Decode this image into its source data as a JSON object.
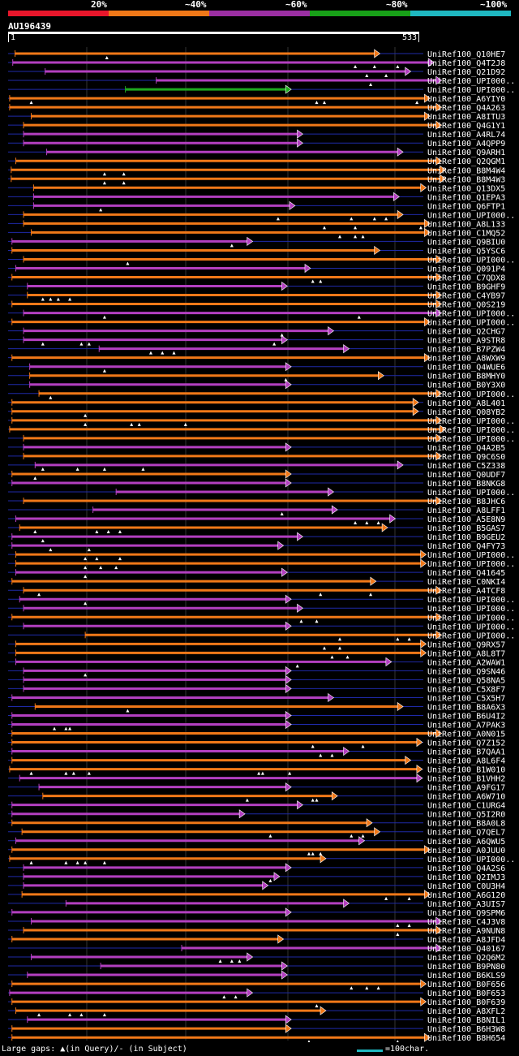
{
  "legend": [
    {
      "label": "20%",
      "color": "#e8162b"
    },
    {
      "label": "~40%",
      "color": "#f07818"
    },
    {
      "label": "~60%",
      "color": "#9b2fa3"
    },
    {
      "label": "~80%",
      "color": "#18a118"
    },
    {
      "label": "~100%",
      "color": "#1fb8c1"
    }
  ],
  "query": {
    "name": "AU196439",
    "start": "1",
    "end": "533",
    "length": 533
  },
  "colors": {
    "orange": "#f07818",
    "purple": "#b33fc0",
    "green": "#1faa1f",
    "blue": "#1f2aa8"
  },
  "hits": [
    {
      "name": "UniRef100_Q10HE7",
      "s": 9,
      "e": 480,
      "c": "orange",
      "g": [
        128
      ]
    },
    {
      "name": "UniRef100_Q4T2J8",
      "s": 6,
      "e": 550,
      "c": "purple",
      "g": [
        450,
        475,
        505
      ]
    },
    {
      "name": "UniRef100_Q21D92",
      "s": 48,
      "e": 520,
      "c": "purple",
      "g": [
        465,
        490
      ]
    },
    {
      "name": "UniRef100_UPI000..",
      "s": 192,
      "e": 560,
      "c": "purple",
      "g": [
        470
      ]
    },
    {
      "name": "UniRef100_UPI000..",
      "s": 152,
      "e": 365,
      "c": "green",
      "g": []
    },
    {
      "name": "UniRef100_A6YIY0",
      "s": 2,
      "e": 545,
      "c": "orange",
      "g": [
        30,
        400,
        410,
        530
      ]
    },
    {
      "name": "UniRef100_Q4A263",
      "s": 2,
      "e": 560,
      "c": "orange",
      "g": []
    },
    {
      "name": "UniRef100_A8ITU3",
      "s": 30,
      "e": 545,
      "c": "orange",
      "g": []
    },
    {
      "name": "UniRef100_Q4G1Y1",
      "s": 20,
      "e": 560,
      "c": "orange",
      "g": []
    },
    {
      "name": "UniRef100_A4RL74",
      "s": 20,
      "e": 380,
      "c": "purple",
      "g": []
    },
    {
      "name": "UniRef100_A4QPP9",
      "s": 20,
      "e": 380,
      "c": "purple",
      "g": []
    },
    {
      "name": "UniRef100_Q9ARH1",
      "s": 50,
      "e": 510,
      "c": "purple",
      "g": []
    },
    {
      "name": "UniRef100_Q2QGM1",
      "s": 10,
      "e": 560,
      "c": "orange",
      "g": []
    },
    {
      "name": "UniRef100_B8M4W4",
      "s": 4,
      "e": 565,
      "c": "orange",
      "g": [
        125,
        150
      ]
    },
    {
      "name": "UniRef100_B8M4W3",
      "s": 4,
      "e": 565,
      "c": "orange",
      "g": [
        125,
        150
      ]
    },
    {
      "name": "UniRef100_Q13DX5",
      "s": 33,
      "e": 540,
      "c": "orange",
      "g": []
    },
    {
      "name": "UniRef100_Q1EPA3",
      "s": 33,
      "e": 505,
      "c": "purple",
      "g": []
    },
    {
      "name": "UniRef100_Q6FTP1",
      "s": 33,
      "e": 370,
      "c": "purple",
      "g": [
        120
      ]
    },
    {
      "name": "UniRef100_UPI000..",
      "s": 20,
      "e": 510,
      "c": "orange",
      "g": [
        350,
        445,
        475,
        490
      ]
    },
    {
      "name": "UniRef100_A8L133",
      "s": 20,
      "e": 545,
      "c": "orange",
      "g": [
        410,
        450,
        535
      ]
    },
    {
      "name": "UniRef100_C1MQ52",
      "s": 30,
      "e": 545,
      "c": "orange",
      "g": [
        430,
        450,
        460,
        540
      ]
    },
    {
      "name": "UniRef100_Q9BIU0",
      "s": 5,
      "e": 315,
      "c": "purple",
      "g": [
        290
      ]
    },
    {
      "name": "UniRef100_Q5YSC6",
      "s": 5,
      "e": 480,
      "c": "orange",
      "g": []
    },
    {
      "name": "UniRef100_UPI000..",
      "s": 20,
      "e": 560,
      "c": "orange",
      "g": [
        155
      ]
    },
    {
      "name": "UniRef100_Q091P4",
      "s": 10,
      "e": 390,
      "c": "purple",
      "g": []
    },
    {
      "name": "UniRef100_C7QDX8",
      "s": 5,
      "e": 560,
      "c": "orange",
      "g": [
        395,
        405
      ]
    },
    {
      "name": "UniRef100_B9GHF9",
      "s": 25,
      "e": 360,
      "c": "purple",
      "g": []
    },
    {
      "name": "UniRef100_C4YB97",
      "s": 25,
      "e": 560,
      "c": "orange",
      "g": [
        45,
        55,
        65,
        80
      ]
    },
    {
      "name": "UniRef100_Q0S219",
      "s": 5,
      "e": 560,
      "c": "orange",
      "g": []
    },
    {
      "name": "UniRef100_UPI000..",
      "s": 20,
      "e": 560,
      "c": "purple",
      "g": [
        125,
        455
      ]
    },
    {
      "name": "UniRef100_UPI000..",
      "s": 5,
      "e": 545,
      "c": "orange",
      "g": []
    },
    {
      "name": "UniRef100_Q2CHG7",
      "s": 20,
      "e": 420,
      "c": "purple",
      "g": [
        355
      ]
    },
    {
      "name": "UniRef100_A9STR8",
      "s": 20,
      "e": 360,
      "c": "purple",
      "g": [
        45,
        95,
        105,
        345
      ]
    },
    {
      "name": "UniRef100_B7PZW4",
      "s": 118,
      "e": 440,
      "c": "purple",
      "g": [
        185,
        200,
        215
      ]
    },
    {
      "name": "UniRef100_A8WXW9",
      "s": 5,
      "e": 545,
      "c": "orange",
      "g": []
    },
    {
      "name": "UniRef100_Q4WUE6",
      "s": 28,
      "e": 365,
      "c": "purple",
      "g": [
        125
      ]
    },
    {
      "name": "UniRef100_B8MHY0",
      "s": 28,
      "e": 485,
      "c": "orange",
      "g": [
        360
      ]
    },
    {
      "name": "UniRef100_B0Y3X0",
      "s": 28,
      "e": 365,
      "c": "purple",
      "g": []
    },
    {
      "name": "UniRef100_UPI000..",
      "s": 40,
      "e": 560,
      "c": "orange",
      "g": [
        55
      ]
    },
    {
      "name": "UniRef100_A8L401",
      "s": 5,
      "e": 530,
      "c": "orange",
      "g": []
    },
    {
      "name": "UniRef100_Q08YB2",
      "s": 5,
      "e": 530,
      "c": "orange",
      "g": [
        100
      ]
    },
    {
      "name": "UniRef100_UPI000..",
      "s": 5,
      "e": 560,
      "c": "orange",
      "g": [
        100,
        160,
        170,
        230
      ]
    },
    {
      "name": "UniRef100_UPI000..",
      "s": 2,
      "e": 565,
      "c": "orange",
      "g": []
    },
    {
      "name": "UniRef100_UPI000..",
      "s": 20,
      "e": 560,
      "c": "orange",
      "g": []
    },
    {
      "name": "UniRef100_Q4A2B5",
      "s": 20,
      "e": 365,
      "c": "purple",
      "g": []
    },
    {
      "name": "UniRef100_Q9C6S0",
      "s": 20,
      "e": 560,
      "c": "orange",
      "g": []
    },
    {
      "name": "UniRef100_C5Z338",
      "s": 35,
      "e": 510,
      "c": "purple",
      "g": [
        45,
        90,
        125,
        175
      ]
    },
    {
      "name": "UniRef100_Q0UDF7",
      "s": 5,
      "e": 365,
      "c": "orange",
      "g": [
        35
      ]
    },
    {
      "name": "UniRef100_B8NKG8",
      "s": 5,
      "e": 365,
      "c": "purple",
      "g": []
    },
    {
      "name": "UniRef100_UPI000..",
      "s": 140,
      "e": 420,
      "c": "purple",
      "g": []
    },
    {
      "name": "UniRef100_B8JHC6",
      "s": 20,
      "e": 560,
      "c": "orange",
      "g": []
    },
    {
      "name": "UniRef100_A8LFF1",
      "s": 110,
      "e": 425,
      "c": "purple",
      "g": [
        355,
        420
      ]
    },
    {
      "name": "UniRef100_A5E8N9",
      "s": 10,
      "e": 500,
      "c": "purple",
      "g": [
        450,
        465,
        480,
        495
      ]
    },
    {
      "name": "UniRef100_B5GAS7",
      "s": 15,
      "e": 490,
      "c": "orange",
      "g": [
        35,
        115,
        130,
        145
      ]
    },
    {
      "name": "UniRef100_B9GEU2",
      "s": 5,
      "e": 380,
      "c": "purple",
      "g": [
        45
      ]
    },
    {
      "name": "UniRef100_Q4FY73",
      "s": 5,
      "e": 355,
      "c": "purple",
      "g": [
        55,
        105
      ]
    },
    {
      "name": "UniRef100_UPI000..",
      "s": 10,
      "e": 540,
      "c": "orange",
      "g": [
        100,
        115,
        145
      ]
    },
    {
      "name": "UniRef100_UPI000..",
      "s": 10,
      "e": 540,
      "c": "orange",
      "g": [
        100,
        120,
        140
      ]
    },
    {
      "name": "UniRef100_Q41645",
      "s": 10,
      "e": 360,
      "c": "purple",
      "g": [
        100
      ]
    },
    {
      "name": "UniRef100_C0NKI4",
      "s": 5,
      "e": 475,
      "c": "orange",
      "g": []
    },
    {
      "name": "UniRef100_A4TCF8",
      "s": 20,
      "e": 560,
      "c": "orange",
      "g": [
        40,
        405,
        470
      ]
    },
    {
      "name": "UniRef100_UPI000..",
      "s": 15,
      "e": 365,
      "c": "purple",
      "g": [
        100
      ]
    },
    {
      "name": "UniRef100_UPI000..",
      "s": 20,
      "e": 380,
      "c": "purple",
      "g": []
    },
    {
      "name": "UniRef100_UPI000..",
      "s": 5,
      "e": 560,
      "c": "orange",
      "g": [
        380,
        400
      ]
    },
    {
      "name": "UniRef100_UPI000..",
      "s": 20,
      "e": 365,
      "c": "purple",
      "g": []
    },
    {
      "name": "UniRef100_UPI000..",
      "s": 100,
      "e": 560,
      "c": "orange",
      "g": [
        430,
        505,
        520
      ]
    },
    {
      "name": "UniRef100_Q9RX57",
      "s": 10,
      "e": 540,
      "c": "orange",
      "g": [
        410,
        430
      ]
    },
    {
      "name": "UniRef100_A8L8T7",
      "s": 10,
      "e": 540,
      "c": "orange",
      "g": [
        420,
        440
      ]
    },
    {
      "name": "UniRef100_A2WAW1",
      "s": 10,
      "e": 495,
      "c": "purple",
      "g": [
        375
      ]
    },
    {
      "name": "UniRef100_Q9SN46",
      "s": 20,
      "e": 365,
      "c": "purple",
      "g": [
        100
      ]
    },
    {
      "name": "UniRef100_Q58NA5",
      "s": 20,
      "e": 365,
      "c": "purple",
      "g": []
    },
    {
      "name": "UniRef100_C5X8F7",
      "s": 20,
      "e": 365,
      "c": "purple",
      "g": []
    },
    {
      "name": "UniRef100_C5X5H7",
      "s": 5,
      "e": 420,
      "c": "purple",
      "g": []
    },
    {
      "name": "UniRef100_B8A6X3",
      "s": 35,
      "e": 510,
      "c": "orange",
      "g": [
        155
      ]
    },
    {
      "name": "UniRef100_B6U4I2",
      "s": 5,
      "e": 365,
      "c": "purple",
      "g": []
    },
    {
      "name": "UniRef100_A7PAK3",
      "s": 5,
      "e": 365,
      "c": "purple",
      "g": [
        60,
        75,
        80
      ]
    },
    {
      "name": "UniRef100_A0N015",
      "s": 5,
      "e": 560,
      "c": "orange",
      "g": []
    },
    {
      "name": "UniRef100_Q7Z152",
      "s": 5,
      "e": 535,
      "c": "orange",
      "g": [
        395,
        460
      ]
    },
    {
      "name": "UniRef100_B7QAA1",
      "s": 5,
      "e": 440,
      "c": "purple",
      "g": [
        405,
        420
      ]
    },
    {
      "name": "UniRef100_A8L6F4",
      "s": 5,
      "e": 520,
      "c": "orange",
      "g": []
    },
    {
      "name": "UniRef100_B1W010",
      "s": 2,
      "e": 535,
      "c": "orange",
      "g": [
        30,
        75,
        85,
        105,
        325,
        330,
        365
      ]
    },
    {
      "name": "UniRef100_B1VHH2",
      "s": 15,
      "e": 535,
      "c": "purple",
      "g": []
    },
    {
      "name": "UniRef100_A9FG17",
      "s": 40,
      "e": 365,
      "c": "purple",
      "g": []
    },
    {
      "name": "UniRef100_A6W710",
      "s": 45,
      "e": 425,
      "c": "orange",
      "g": [
        310,
        395,
        400
      ]
    },
    {
      "name": "UniRef100_C1URG4",
      "s": 5,
      "e": 380,
      "c": "purple",
      "g": []
    },
    {
      "name": "UniRef100_Q5I2R0",
      "s": 5,
      "e": 305,
      "c": "purple",
      "g": []
    },
    {
      "name": "UniRef100_B8A0L8",
      "s": 5,
      "e": 470,
      "c": "orange",
      "g": []
    },
    {
      "name": "UniRef100_Q7QEL7",
      "s": 18,
      "e": 480,
      "c": "orange",
      "g": [
        340,
        445,
        460
      ]
    },
    {
      "name": "UniRef100_A6QWU5",
      "s": 10,
      "e": 460,
      "c": "purple",
      "g": []
    },
    {
      "name": "UniRef100_A0JUU0",
      "s": 5,
      "e": 545,
      "c": "orange",
      "g": [
        390,
        395,
        405
      ]
    },
    {
      "name": "UniRef100_UPI000..",
      "s": 2,
      "e": 410,
      "c": "orange",
      "g": [
        30,
        75,
        90,
        100,
        125
      ]
    },
    {
      "name": "UniRef100_Q4A2S6",
      "s": 20,
      "e": 365,
      "c": "purple",
      "g": []
    },
    {
      "name": "UniRef100_Q2IMJ3",
      "s": 20,
      "e": 350,
      "c": "purple",
      "g": [
        340
      ]
    },
    {
      "name": "UniRef100_C0U3H4",
      "s": 20,
      "e": 335,
      "c": "purple",
      "g": []
    },
    {
      "name": "UniRef100_A6G120",
      "s": 18,
      "e": 545,
      "c": "orange",
      "g": [
        490,
        520
      ]
    },
    {
      "name": "UniRef100_A3UIS7",
      "s": 75,
      "e": 440,
      "c": "purple",
      "g": []
    },
    {
      "name": "UniRef100_Q9SPM6",
      "s": 5,
      "e": 365,
      "c": "purple",
      "g": []
    },
    {
      "name": "UniRef100_C4J3V8",
      "s": 30,
      "e": 560,
      "c": "purple",
      "g": [
        505,
        520
      ]
    },
    {
      "name": "UniRef100_A9NUN8",
      "s": 20,
      "e": 560,
      "c": "orange",
      "g": [
        505
      ]
    },
    {
      "name": "UniRef100_A8JFD4",
      "s": 5,
      "e": 355,
      "c": "orange",
      "g": []
    },
    {
      "name": "UniRef100_Q40167",
      "s": 225,
      "e": 560,
      "c": "purple",
      "g": []
    },
    {
      "name": "UniRef100_Q2Q6M2",
      "s": 30,
      "e": 315,
      "c": "purple",
      "g": [
        275,
        290,
        300
      ]
    },
    {
      "name": "UniRef100_B9PN80",
      "s": 120,
      "e": 360,
      "c": "purple",
      "g": []
    },
    {
      "name": "UniRef100_B6KLS9",
      "s": 25,
      "e": 360,
      "c": "purple",
      "g": []
    },
    {
      "name": "UniRef100_B0F656",
      "s": 5,
      "e": 540,
      "c": "orange",
      "g": [
        445,
        465,
        480
      ]
    },
    {
      "name": "UniRef100_B0F653",
      "s": 2,
      "e": 315,
      "c": "purple",
      "g": [
        280,
        295
      ]
    },
    {
      "name": "UniRef100_B0F639",
      "s": 5,
      "e": 540,
      "c": "orange",
      "g": [
        400
      ]
    },
    {
      "name": "UniRef100_A8XFL2",
      "s": 10,
      "e": 410,
      "c": "orange",
      "g": [
        40,
        80,
        95,
        125
      ]
    },
    {
      "name": "UniRef100_B8NIL1",
      "s": 25,
      "e": 365,
      "c": "purple",
      "g": []
    },
    {
      "name": "UniRef100_B6H3W8",
      "s": 5,
      "e": 365,
      "c": "orange",
      "g": []
    },
    {
      "name": "UniRef100_B8H654",
      "s": 5,
      "e": 545,
      "c": "orange",
      "g": [
        390,
        505
      ]
    }
  ],
  "footer": {
    "left": "Large gaps: ▲(in Query)/- (in Subject)",
    "right": "=100char."
  }
}
